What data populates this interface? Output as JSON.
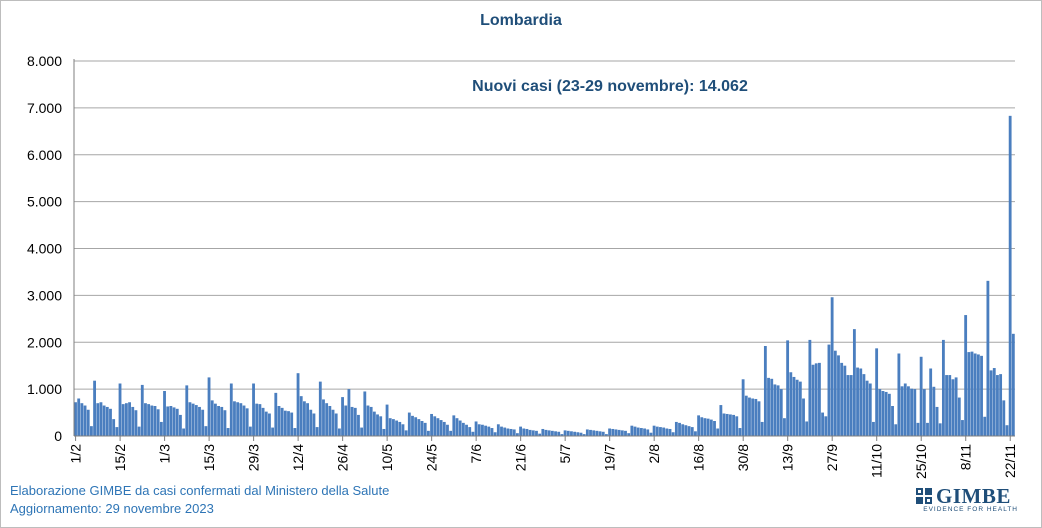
{
  "chart_data": {
    "type": "bar",
    "title": "Lombardia",
    "annotation": "Nuovi casi (23-29 novembre): 14.062",
    "ylim": [
      0,
      8000
    ],
    "ytick_labels": [
      "0",
      "1.000",
      "2.000",
      "3.000",
      "4.000",
      "5.000",
      "6.000",
      "7.000",
      "8.000"
    ],
    "ytick_values": [
      0,
      1000,
      2000,
      3000,
      4000,
      5000,
      6000,
      7000,
      8000
    ],
    "xtick_labels": [
      "1/2",
      "15/2",
      "1/3",
      "15/3",
      "29/3",
      "12/4",
      "26/4",
      "10/5",
      "24/5",
      "7/6",
      "21/6",
      "5/7",
      "19/7",
      "2/8",
      "16/8",
      "30/8",
      "13/9",
      "27/9",
      "11/10",
      "25/10",
      "8/11",
      "22/11"
    ],
    "xtick_interval_days": 14,
    "grid": true,
    "bar_color": "#4a7ebf",
    "series": [
      {
        "values": [
          720,
          800,
          700,
          650,
          560,
          210,
          1180,
          700,
          720,
          650,
          620,
          580,
          360,
          190,
          1120,
          680,
          700,
          720,
          620,
          550,
          200,
          1090,
          700,
          680,
          650,
          640,
          570,
          300,
          960,
          630,
          640,
          610,
          580,
          450,
          160,
          1080,
          720,
          690,
          660,
          620,
          560,
          210,
          1250,
          760,
          690,
          640,
          620,
          550,
          170,
          1120,
          740,
          720,
          700,
          650,
          590,
          200,
          1120,
          690,
          680,
          600,
          520,
          480,
          180,
          920,
          640,
          600,
          540,
          530,
          500,
          170,
          1340,
          850,
          740,
          700,
          560,
          480,
          190,
          1160,
          780,
          700,
          640,
          560,
          480,
          160,
          830,
          650,
          1000,
          620,
          600,
          450,
          180,
          950,
          650,
          620,
          520,
          460,
          420,
          150,
          670,
          380,
          360,
          330,
          300,
          250,
          120,
          500,
          430,
          400,
          360,
          320,
          280,
          110,
          470,
          420,
          380,
          340,
          300,
          240,
          110,
          440,
          380,
          330,
          280,
          240,
          190,
          90,
          310,
          250,
          240,
          220,
          200,
          170,
          80,
          250,
          200,
          180,
          160,
          150,
          140,
          60,
          200,
          160,
          150,
          130,
          120,
          110,
          50,
          150,
          130,
          120,
          110,
          100,
          90,
          40,
          120,
          110,
          100,
          90,
          80,
          70,
          40,
          140,
          130,
          120,
          110,
          100,
          90,
          40,
          160,
          150,
          140,
          130,
          120,
          110,
          60,
          220,
          200,
          180,
          170,
          160,
          140,
          70,
          220,
          200,
          190,
          180,
          160,
          150,
          80,
          300,
          280,
          250,
          230,
          210,
          190,
          100,
          440,
          400,
          380,
          370,
          350,
          320,
          160,
          660,
          480,
          470,
          460,
          450,
          420,
          170,
          1210,
          860,
          820,
          800,
          790,
          740,
          300,
          1920,
          1240,
          1220,
          1100,
          1080,
          1000,
          380,
          2040,
          1360,
          1260,
          1200,
          1160,
          800,
          310,
          2050,
          1520,
          1550,
          1560,
          500,
          420,
          1950,
          2960,
          1820,
          1720,
          1560,
          1500,
          1300,
          1300,
          2280,
          1460,
          1440,
          1320,
          1180,
          1120,
          300,
          1870,
          1000,
          960,
          940,
          900,
          640,
          250,
          1760,
          1060,
          1120,
          1060,
          1010,
          1000,
          280,
          1690,
          1000,
          280,
          1440,
          1050,
          620,
          270,
          2050,
          1300,
          1300,
          1210,
          1250,
          820,
          340,
          2580,
          1790,
          1800,
          1760,
          1740,
          1710,
          410,
          3310,
          1400,
          1450,
          1300,
          1320,
          760,
          230,
          6830,
          2180
        ]
      }
    ]
  },
  "footer": {
    "line1": "Elaborazione GIMBE da casi confermati dal Ministero della Salute",
    "line2": "Aggiornamento: 29 novembre 2023"
  },
  "logo": {
    "word": "GIMBE",
    "tagline": "EVIDENCE FOR HEALTH",
    "icon": "gimbe-logo-icon"
  }
}
